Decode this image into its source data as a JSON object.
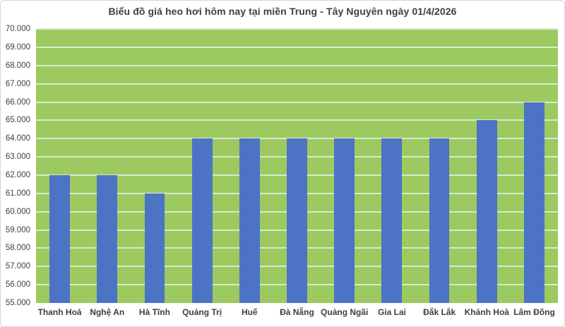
{
  "window": {
    "background": "#ffffff",
    "border_color": "#d6d6d6"
  },
  "chart_data": {
    "type": "bar",
    "title": "Biểu đồ giá heo hơi hôm nay tại miền Trung - Tây Nguyên ngày 01/4/2026",
    "categories": [
      "Thanh Hoá",
      "Nghệ An",
      "Hà Tĩnh",
      "Quảng Trị",
      "Huế",
      "Đà Nẵng",
      "Quảng Ngãi",
      "Gia Lai",
      "Đắk Lắk",
      "Khánh Hoà",
      "Lâm Đồng"
    ],
    "values": [
      62000,
      62000,
      61000,
      64000,
      64000,
      64000,
      64000,
      64000,
      64000,
      65000,
      66000
    ],
    "xlabel": "",
    "ylabel": "",
    "ylim": [
      55000,
      70000
    ],
    "ytick_step": 1000,
    "ytick_labels": [
      "55.000",
      "56.000",
      "57.000",
      "58.000",
      "59.000",
      "60.000",
      "61.000",
      "62.000",
      "63.000",
      "64.000",
      "65.000",
      "66.000",
      "67.000",
      "68.000",
      "69.000",
      "70.000"
    ],
    "grid": true,
    "legend": false,
    "colors": {
      "bar": "#4d73c4",
      "plot_background": "#9cc960",
      "gridline": "#dbe8d1",
      "title_text": "#3f3f3f",
      "axis_text": "#3f3f3f"
    }
  }
}
